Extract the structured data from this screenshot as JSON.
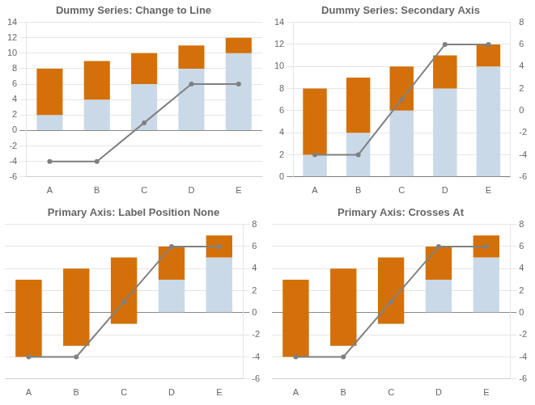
{
  "chart_data": [
    {
      "type": "bar",
      "title": "Dummy Series: Change to Line",
      "categories": [
        "A",
        "B",
        "C",
        "D",
        "E"
      ],
      "series": [
        {
          "type": "bar",
          "color": "#c9d9e8",
          "values": [
            2,
            4,
            6,
            8,
            10
          ]
        },
        {
          "type": "bar",
          "color": "#d4700a",
          "values": [
            [
              2,
              8
            ],
            [
              4,
              9
            ],
            [
              6,
              10
            ],
            [
              8,
              11
            ],
            [
              10,
              12
            ]
          ]
        },
        {
          "type": "line",
          "color": "#808080",
          "marker": "circle",
          "values": [
            -4,
            -4,
            1,
            6,
            6
          ]
        }
      ],
      "ylim": [
        -6,
        14
      ],
      "yticks": [
        -6,
        -4,
        -2,
        0,
        2,
        4,
        6,
        8,
        10,
        12,
        14
      ],
      "grid": true
    },
    {
      "type": "bar",
      "title": "Dummy Series: Secondary Axis",
      "categories": [
        "A",
        "B",
        "C",
        "D",
        "E"
      ],
      "series": [
        {
          "type": "bar",
          "color": "#c9d9e8",
          "values": [
            2,
            4,
            6,
            8,
            10
          ]
        },
        {
          "type": "bar",
          "color": "#d4700a",
          "values": [
            [
              2,
              8
            ],
            [
              4,
              9
            ],
            [
              6,
              10
            ],
            [
              8,
              11
            ],
            [
              10,
              12
            ]
          ]
        },
        {
          "type": "line",
          "color": "#808080",
          "marker": "circle",
          "axis": "y2",
          "values": [
            -4,
            -4,
            1,
            6,
            6
          ]
        }
      ],
      "ylim": [
        0,
        14
      ],
      "yticks": [
        0,
        2,
        4,
        6,
        8,
        10,
        12,
        14
      ],
      "y2lim": [
        -6,
        8
      ],
      "y2ticks": [
        -6,
        -4,
        -2,
        0,
        2,
        4,
        6,
        8
      ],
      "grid": true
    },
    {
      "type": "bar",
      "title": "Primary Axis: Label Position None",
      "categories": [
        "A",
        "B",
        "C",
        "D",
        "E"
      ],
      "series": [
        {
          "type": "bar",
          "color": "#c9d9e8",
          "axis": "y2",
          "values": [
            -4,
            -3,
            -1,
            3,
            5
          ]
        },
        {
          "type": "bar",
          "color": "#d4700a",
          "axis": "y2",
          "values": [
            [
              -4,
              3
            ],
            [
              -3,
              4
            ],
            [
              -1,
              5
            ],
            [
              3,
              6
            ],
            [
              5,
              7
            ]
          ]
        },
        {
          "type": "line",
          "color": "#808080",
          "marker": "circle",
          "axis": "y2",
          "values": [
            -4,
            -4,
            1,
            6,
            6
          ]
        }
      ],
      "y2lim": [
        -6,
        8
      ],
      "y2ticks": [
        -6,
        -4,
        -2,
        0,
        2,
        4,
        6,
        8
      ],
      "grid": true
    },
    {
      "type": "bar",
      "title": "Primary Axis: Crosses At",
      "categories": [
        "A",
        "B",
        "C",
        "D",
        "E"
      ],
      "series": [
        {
          "type": "bar",
          "color": "#c9d9e8",
          "axis": "y2",
          "values": [
            -4,
            -3,
            -1,
            3,
            5
          ]
        },
        {
          "type": "bar",
          "color": "#d4700a",
          "axis": "y2",
          "values": [
            [
              -4,
              3
            ],
            [
              -3,
              4
            ],
            [
              -1,
              5
            ],
            [
              3,
              6
            ],
            [
              5,
              7
            ]
          ]
        },
        {
          "type": "line",
          "color": "#808080",
          "marker": "circle",
          "axis": "y2",
          "values": [
            -4,
            -4,
            1,
            6,
            6
          ]
        }
      ],
      "y2lim": [
        -6,
        8
      ],
      "y2ticks": [
        -6,
        -4,
        -2,
        0,
        2,
        4,
        6,
        8
      ],
      "grid": true
    }
  ]
}
